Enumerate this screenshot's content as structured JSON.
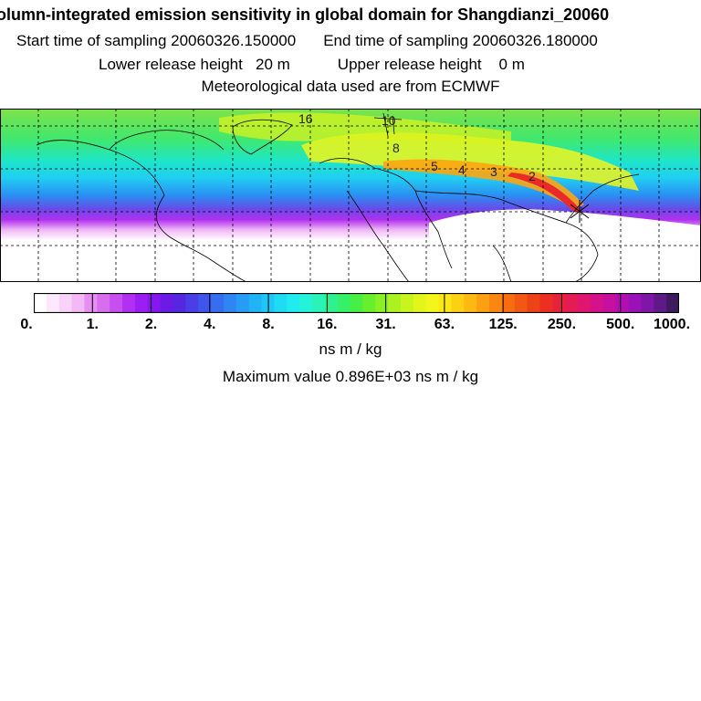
{
  "header": {
    "title": "olumn-integrated emission sensitivity in global domain for Shangdianzi_20060",
    "start_label": "Start time of sampling 20060326.150000",
    "end_label": "End time of sampling 20060326.180000",
    "lower_label": "Lower release height   20 m",
    "upper_label": "Upper release height    0 m",
    "met_label": "Meteorological data used are from ECMWF"
  },
  "map": {
    "contour_labels": [
      "16",
      "10",
      "8",
      "5",
      "4",
      "3",
      "2"
    ],
    "colors": {
      "land_outline": "#000000",
      "grid": "#000000",
      "background": "#ffffff"
    }
  },
  "colorbar": {
    "tick_labels": [
      "0.",
      "1.",
      "2.",
      "4.",
      "8.",
      "16.",
      "31.",
      "63.",
      "125.",
      "250.",
      "500.",
      "1000."
    ],
    "colors": [
      "#ffffff",
      "#fde8fd",
      "#f9d2fa",
      "#f3b8f6",
      "#e68ef1",
      "#d86eee",
      "#c74ff0",
      "#b130f2",
      "#9b1ff3",
      "#8418ef",
      "#6c1ae6",
      "#5626e1",
      "#4b3ee6",
      "#3f56ec",
      "#366ef0",
      "#2e86f3",
      "#279cf5",
      "#22b2f6",
      "#1ec7f6",
      "#1fdbf4",
      "#20ecef",
      "#24f3d9",
      "#29f3b6",
      "#2ef28f",
      "#36f067",
      "#47ee43",
      "#68ee2d",
      "#8aef25",
      "#acf220",
      "#c8f51e",
      "#e1f71c",
      "#f3f61a",
      "#fbe617",
      "#fdd014",
      "#fdb812",
      "#fc9f10",
      "#fa870f",
      "#f66e10",
      "#f25713",
      "#ee4218",
      "#eb2f23",
      "#e8223a",
      "#e41b55",
      "#df1670",
      "#d4128a",
      "#c510a0",
      "#b10fb1",
      "#9a12b7",
      "#7f16a8",
      "#601a88",
      "#3f1a5c"
    ]
  },
  "units_label": "ns m / kg",
  "max_label": "Maximum value  0.896E+03 ns m / kg"
}
